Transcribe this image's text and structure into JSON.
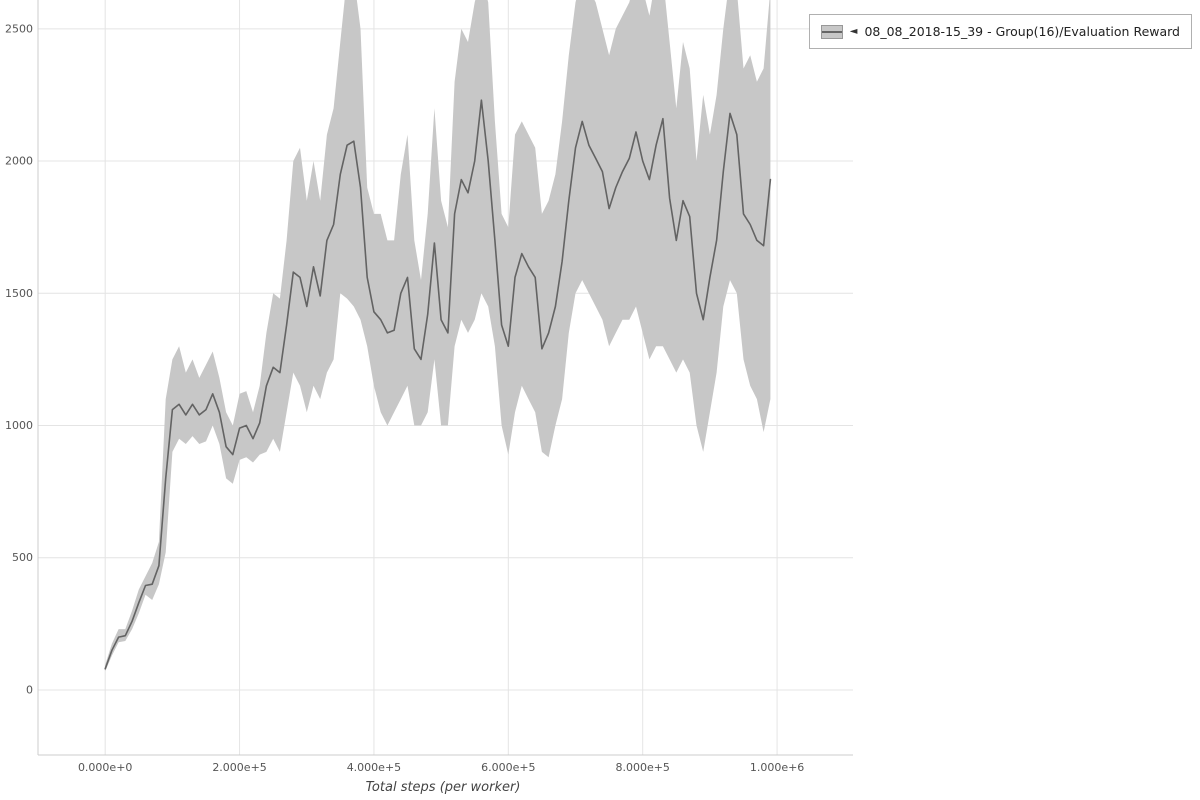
{
  "chart_data": {
    "type": "line",
    "title": "",
    "xlabel": "Total steps (per worker)",
    "ylabel": "",
    "legend_position": "top-right",
    "grid": true,
    "xlim": [
      -100000,
      1113000
    ],
    "ylim": [
      -246,
      2609
    ],
    "x_ticks": [
      {
        "value": 0,
        "label": "0.000e+0"
      },
      {
        "value": 200000,
        "label": "2.000e+5"
      },
      {
        "value": 400000,
        "label": "4.000e+5"
      },
      {
        "value": 600000,
        "label": "6.000e+5"
      },
      {
        "value": 800000,
        "label": "8.000e+5"
      },
      {
        "value": 1000000,
        "label": "1.000e+6"
      }
    ],
    "y_ticks": [
      {
        "value": 0,
        "label": "0"
      },
      {
        "value": 500,
        "label": "500"
      },
      {
        "value": 1000,
        "label": "1000"
      },
      {
        "value": 1500,
        "label": "1500"
      },
      {
        "value": 2000,
        "label": "2000"
      },
      {
        "value": 2500,
        "label": "2500"
      }
    ],
    "colors": {
      "line": "#636363",
      "band": "#c7c7c7",
      "grid": "#e4e4e4",
      "spine": "#cccccc",
      "tick_text": "#555555"
    },
    "series": [
      {
        "name": "08_08_2018-15_39 - Group(16)/Evaluation Reward",
        "x": [
          0,
          10000,
          20000,
          30000,
          40000,
          50000,
          60000,
          70000,
          80000,
          90000,
          100000,
          110000,
          120000,
          130000,
          140000,
          150000,
          160000,
          170000,
          180000,
          190000,
          200000,
          210000,
          220000,
          230000,
          240000,
          250000,
          260000,
          270000,
          280000,
          290000,
          300000,
          310000,
          320000,
          330000,
          340000,
          350000,
          360000,
          370000,
          380000,
          390000,
          400000,
          410000,
          420000,
          430000,
          440000,
          450000,
          460000,
          470000,
          480000,
          490000,
          500000,
          510000,
          520000,
          530000,
          540000,
          550000,
          560000,
          570000,
          580000,
          590000,
          600000,
          610000,
          620000,
          630000,
          640000,
          650000,
          660000,
          670000,
          680000,
          690000,
          700000,
          710000,
          720000,
          730000,
          740000,
          750000,
          760000,
          770000,
          780000,
          790000,
          800000,
          810000,
          820000,
          830000,
          840000,
          850000,
          860000,
          870000,
          880000,
          890000,
          900000,
          910000,
          920000,
          930000,
          940000,
          950000,
          960000,
          970000,
          980000,
          990000
        ],
        "mean": [
          80,
          150,
          200,
          205,
          260,
          330,
          395,
          400,
          470,
          800,
          1060,
          1080,
          1040,
          1080,
          1040,
          1060,
          1120,
          1050,
          920,
          890,
          990,
          1000,
          950,
          1010,
          1150,
          1220,
          1200,
          1380,
          1580,
          1560,
          1450,
          1600,
          1490,
          1700,
          1760,
          1950,
          2060,
          2075,
          1900,
          1560,
          1430,
          1400,
          1350,
          1360,
          1500,
          1560,
          1290,
          1250,
          1420,
          1690,
          1400,
          1350,
          1800,
          1930,
          1880,
          2000,
          2230,
          2000,
          1700,
          1380,
          1300,
          1560,
          1650,
          1600,
          1560,
          1290,
          1350,
          1450,
          1620,
          1850,
          2050,
          2150,
          2060,
          2010,
          1960,
          1820,
          1900,
          1960,
          2010,
          2110,
          2000,
          1930,
          2060,
          2160,
          1860,
          1700,
          1850,
          1790,
          1500,
          1400,
          1560,
          1700,
          1960,
          2180,
          2100,
          1800,
          1760,
          1700,
          1680,
          1930
        ],
        "lower": [
          70,
          130,
          180,
          185,
          230,
          290,
          360,
          340,
          400,
          520,
          900,
          950,
          930,
          960,
          930,
          940,
          1000,
          930,
          800,
          780,
          870,
          880,
          860,
          890,
          900,
          950,
          900,
          1050,
          1200,
          1150,
          1050,
          1150,
          1100,
          1200,
          1250,
          1500,
          1480,
          1450,
          1400,
          1300,
          1150,
          1050,
          1000,
          1050,
          1100,
          1150,
          1000,
          1000,
          1050,
          1250,
          1000,
          1000,
          1300,
          1400,
          1350,
          1400,
          1500,
          1450,
          1300,
          1000,
          890,
          1050,
          1150,
          1100,
          1050,
          900,
          880,
          1000,
          1100,
          1350,
          1500,
          1550,
          1500,
          1450,
          1400,
          1300,
          1350,
          1400,
          1400,
          1450,
          1350,
          1250,
          1300,
          1300,
          1250,
          1200,
          1250,
          1200,
          1000,
          900,
          1050,
          1200,
          1450,
          1550,
          1500,
          1250,
          1150,
          1100,
          975,
          1100
        ],
        "upper": [
          95,
          175,
          230,
          230,
          300,
          380,
          430,
          480,
          560,
          1100,
          1250,
          1300,
          1200,
          1250,
          1180,
          1230,
          1280,
          1180,
          1050,
          1000,
          1120,
          1130,
          1050,
          1150,
          1350,
          1500,
          1480,
          1700,
          2000,
          2050,
          1850,
          2000,
          1850,
          2100,
          2200,
          2450,
          2700,
          2700,
          2500,
          1900,
          1800,
          1800,
          1700,
          1700,
          1950,
          2100,
          1700,
          1550,
          1800,
          2200,
          1850,
          1750,
          2300,
          2500,
          2450,
          2600,
          2700,
          2600,
          2150,
          1800,
          1750,
          2100,
          2150,
          2100,
          2050,
          1800,
          1850,
          1950,
          2150,
          2400,
          2600,
          2700,
          2650,
          2600,
          2500,
          2400,
          2500,
          2550,
          2600,
          2700,
          2650,
          2550,
          2700,
          2700,
          2450,
          2200,
          2450,
          2350,
          2000,
          2250,
          2100,
          2250,
          2500,
          2700,
          2650,
          2350,
          2400,
          2300,
          2350,
          2650
        ]
      }
    ]
  },
  "legend": {
    "arrow": "◄",
    "label": "08_08_2018-15_39 - Group(16)/Evaluation Reward"
  }
}
